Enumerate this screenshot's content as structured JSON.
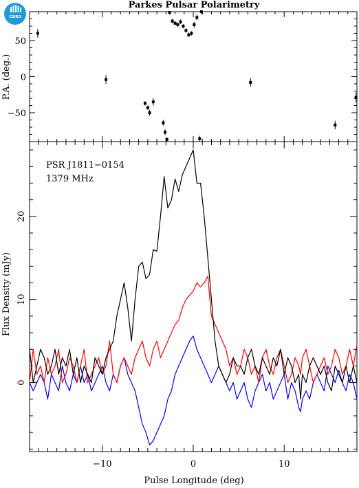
{
  "logo": {
    "text": "CSIRO",
    "color": "#1e9bd7"
  },
  "colors": {
    "total_intensity": "#000000",
    "linear_polarization": "#ff0000",
    "circular_polarization": "#0000ff"
  },
  "chart_data": [
    {
      "type": "scatter",
      "title": "Parkes Pulsar Polarimetry",
      "ylabel": "P.A. (deg.)",
      "xlim": [
        -18,
        18
      ],
      "ylim": [
        -90,
        90
      ],
      "yticks": [
        -50,
        0,
        50
      ],
      "ytick_labels": [
        "−50",
        "0",
        "50"
      ],
      "points": [
        {
          "x": -17.1,
          "y": 60,
          "err": 6
        },
        {
          "x": -9.6,
          "y": -4,
          "err": 6
        },
        {
          "x": -5.3,
          "y": -37,
          "err": 3
        },
        {
          "x": -5.0,
          "y": -43,
          "err": 3
        },
        {
          "x": -4.8,
          "y": -50,
          "err": 4
        },
        {
          "x": -4.4,
          "y": -35,
          "err": 5
        },
        {
          "x": -3.3,
          "y": -64,
          "err": 4
        },
        {
          "x": -3.1,
          "y": -77,
          "err": 4
        },
        {
          "x": -2.9,
          "y": -87,
          "err": 3
        },
        {
          "x": -2.6,
          "y": 89,
          "err": 3
        },
        {
          "x": -2.3,
          "y": 77,
          "err": 3
        },
        {
          "x": -2.0,
          "y": 74,
          "err": 3
        },
        {
          "x": -1.7,
          "y": 72,
          "err": 3
        },
        {
          "x": -1.4,
          "y": 76,
          "err": 3
        },
        {
          "x": -1.1,
          "y": 70,
          "err": 3
        },
        {
          "x": -0.8,
          "y": 64,
          "err": 3
        },
        {
          "x": -0.5,
          "y": 58,
          "err": 3
        },
        {
          "x": -0.2,
          "y": 60,
          "err": 3
        },
        {
          "x": 0.1,
          "y": 72,
          "err": 4
        },
        {
          "x": 0.4,
          "y": 82,
          "err": 4
        },
        {
          "x": 0.7,
          "y": -86,
          "err": 4
        },
        {
          "x": 0.9,
          "y": 90,
          "err": 4
        },
        {
          "x": 6.3,
          "y": -8,
          "err": 6
        },
        {
          "x": 15.6,
          "y": -67,
          "err": 6
        },
        {
          "x": 17.9,
          "y": -29,
          "err": 7
        }
      ]
    },
    {
      "type": "line",
      "xlabel": "Pulse Longitude (deg)",
      "ylabel": "Flux Density (mJy)",
      "xlim": [
        -18,
        18
      ],
      "ylim": [
        -8.3,
        29
      ],
      "xticks": [
        -10,
        0,
        10
      ],
      "xtick_labels": [
        "−10",
        "0",
        "10"
      ],
      "yticks": [
        0,
        10,
        20
      ],
      "ytick_labels": [
        "0",
        "10",
        "20"
      ],
      "annotations": [
        "PSR J1811−0154",
        "1379 MHz"
      ],
      "x": [
        -18.0,
        -17.6,
        -17.2,
        -16.8,
        -16.4,
        -16.0,
        -15.6,
        -15.2,
        -14.8,
        -14.4,
        -14.0,
        -13.6,
        -13.2,
        -12.8,
        -12.4,
        -12.0,
        -11.6,
        -11.2,
        -10.8,
        -10.4,
        -10.0,
        -9.6,
        -9.2,
        -8.8,
        -8.4,
        -8.0,
        -7.6,
        -7.2,
        -6.8,
        -6.4,
        -6.0,
        -5.6,
        -5.2,
        -4.8,
        -4.4,
        -4.0,
        -3.6,
        -3.2,
        -2.8,
        -2.4,
        -2.0,
        -1.6,
        -1.2,
        -0.8,
        -0.4,
        0.0,
        0.4,
        0.8,
        1.2,
        1.6,
        2.0,
        2.4,
        2.8,
        3.2,
        3.6,
        4.0,
        4.4,
        4.8,
        5.2,
        5.6,
        6.0,
        6.4,
        6.8,
        7.2,
        7.6,
        8.0,
        8.4,
        8.8,
        9.2,
        9.6,
        10.0,
        10.4,
        10.8,
        11.2,
        11.6,
        11.8,
        12.0,
        12.4,
        12.8,
        13.2,
        13.6,
        14.0,
        14.4,
        14.8,
        15.2,
        15.6,
        16.0,
        16.4,
        16.8,
        17.2,
        17.6,
        18.0
      ],
      "series": [
        {
          "color": "#000000",
          "values": [
            4.0,
            0.0,
            2.0,
            4.0,
            3.0,
            1.0,
            2.0,
            4.0,
            1.0,
            3.0,
            2.0,
            4.0,
            1.0,
            3.0,
            0.0,
            2.0,
            1.0,
            0.0,
            3.0,
            2.0,
            1.0,
            3.0,
            4.0,
            5.0,
            8.0,
            10.0,
            12.0,
            9.0,
            5.0,
            10.0,
            14.0,
            14.5,
            12.5,
            13.0,
            16.0,
            15.8,
            20.0,
            24.8,
            21.0,
            22.0,
            24.5,
            23.0,
            25.0,
            26.0,
            27.0,
            28.0,
            24.0,
            24.0,
            20.0,
            15.0,
            10.0,
            5.0,
            2.0,
            1.0,
            0.0,
            1.0,
            3.0,
            2.0,
            2.0,
            1.0,
            3.0,
            4.0,
            2.0,
            1.0,
            3.0,
            2.0,
            1.0,
            3.0,
            2.0,
            4.0,
            1.0,
            3.0,
            2.0,
            0.0,
            1.0,
            -2.0,
            1.0,
            0.0,
            2.0,
            3.0,
            2.0,
            1.0,
            2.0,
            0.0,
            -1.0,
            2.0,
            1.0,
            0.0,
            2.0,
            0.0,
            2.0,
            0.0
          ]
        },
        {
          "color": "#ff0000",
          "values": [
            0.0,
            4.0,
            1.0,
            2.0,
            0.0,
            3.0,
            1.0,
            2.0,
            4.0,
            0.0,
            1.0,
            3.0,
            2.0,
            0.0,
            2.0,
            4.0,
            0.0,
            1.0,
            2.0,
            3.0,
            1.0,
            2.0,
            5.0,
            1.0,
            0.0,
            2.0,
            3.0,
            2.0,
            1.0,
            3.0,
            4.0,
            5.0,
            3.0,
            2.0,
            4.0,
            5.0,
            3.0,
            4.0,
            5.0,
            6.0,
            7.0,
            7.5,
            9.0,
            10.0,
            10.5,
            11.0,
            12.0,
            11.5,
            12.0,
            12.8,
            8.0,
            7.0,
            6.0,
            5.0,
            4.0,
            2.0,
            3.0,
            1.0,
            2.0,
            4.0,
            3.0,
            1.0,
            2.0,
            0.0,
            3.0,
            4.0,
            2.0,
            1.0,
            3.0,
            4.0,
            2.0,
            0.0,
            1.0,
            3.0,
            2.0,
            1.0,
            3.0,
            4.0,
            2.0,
            0.0,
            1.0,
            2.0,
            3.0,
            1.0,
            2.0,
            4.0,
            3.0,
            1.0,
            2.0,
            4.0,
            2.0,
            4.5
          ]
        },
        {
          "color": "#0000ff",
          "values": [
            0.0,
            -1.0,
            0.0,
            1.0,
            0.0,
            -2.0,
            1.0,
            0.0,
            -1.0,
            2.0,
            0.0,
            -1.0,
            1.0,
            0.0,
            2.0,
            0.0,
            1.0,
            -1.0,
            0.0,
            1.0,
            2.0,
            0.0,
            -1.0,
            1.0,
            0.0,
            2.0,
            3.0,
            1.0,
            0.0,
            -1.0,
            -3.0,
            -5.0,
            -6.0,
            -7.5,
            -7.0,
            -6.0,
            -5.0,
            -4.0,
            -2.0,
            -1.0,
            1.0,
            2.0,
            3.0,
            4.0,
            5.0,
            5.6,
            4.0,
            3.0,
            2.0,
            1.0,
            0.0,
            1.0,
            2.0,
            1.0,
            0.0,
            -1.0,
            0.0,
            -2.0,
            -1.0,
            0.0,
            -2.0,
            -3.0,
            -1.0,
            0.0,
            1.0,
            -1.0,
            0.0,
            -2.0,
            -1.0,
            0.0,
            1.0,
            -2.0,
            0.0,
            -1.0,
            -3.0,
            -3.5,
            -2.0,
            -1.0,
            -2.0,
            0.0,
            1.0,
            0.0,
            -1.0,
            2.0,
            1.0,
            0.0,
            1.5,
            0.0,
            -1.0,
            1.0,
            0.0,
            -2.0
          ]
        }
      ]
    }
  ]
}
